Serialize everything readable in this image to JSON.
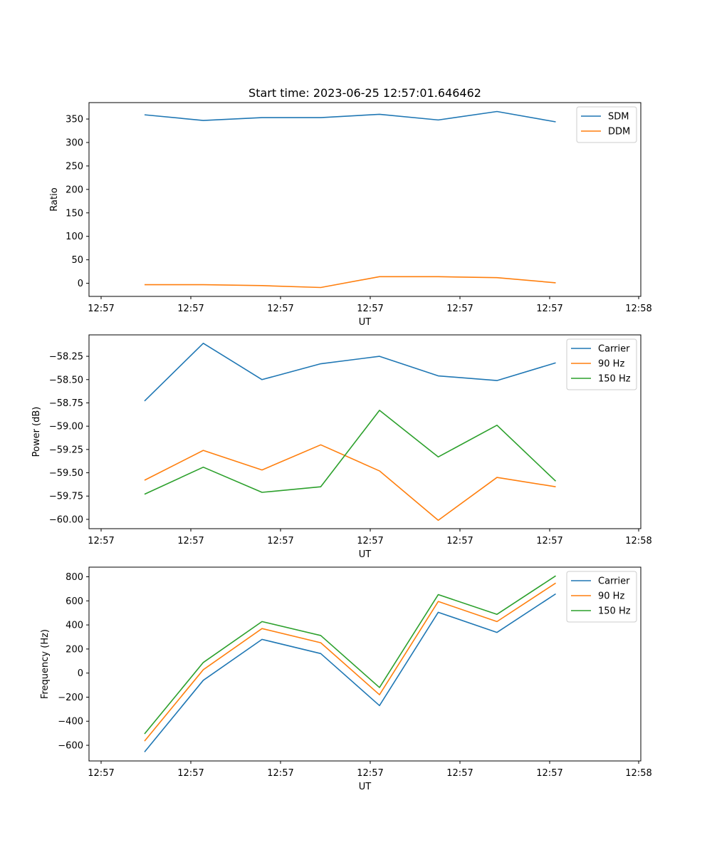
{
  "colors": {
    "blue": "#1f77b4",
    "orange": "#ff7f0e",
    "green": "#2ca02c"
  },
  "chart_data": [
    {
      "type": "line",
      "title": "Start time: 2023-06-25 12:57:01.646462",
      "xlabel": "UT",
      "ylabel": "Ratio",
      "x_tick_labels": [
        "12:57",
        "12:57",
        "12:57",
        "12:57",
        "12:57",
        "12:57",
        "12:58"
      ],
      "y_ticks": [
        0,
        50,
        100,
        150,
        200,
        250,
        300,
        350
      ],
      "y_tick_labels": [
        "0",
        "50",
        "100",
        "150",
        "200",
        "250",
        "300",
        "350"
      ],
      "ylim": [
        -28,
        385
      ],
      "legend_position": "top-right",
      "series": [
        {
          "name": "SDM",
          "color": "#1f77b4",
          "values": [
            359,
            347,
            353,
            353,
            360,
            348,
            366,
            344
          ]
        },
        {
          "name": "DDM",
          "color": "#ff7f0e",
          "values": [
            -3,
            -3,
            -5,
            -9,
            14,
            14,
            12,
            1
          ]
        }
      ]
    },
    {
      "type": "line",
      "title": "",
      "xlabel": "UT",
      "ylabel": "Power (dB)",
      "x_tick_labels": [
        "12:57",
        "12:57",
        "12:57",
        "12:57",
        "12:57",
        "12:57",
        "12:58"
      ],
      "y_ticks": [
        -60.0,
        -59.75,
        -59.5,
        -59.25,
        -59.0,
        -58.75,
        -58.5,
        -58.25
      ],
      "y_tick_labels": [
        "−60.00",
        "−59.75",
        "−59.50",
        "−59.25",
        "−59.00",
        "−58.75",
        "−58.50",
        "−58.25"
      ],
      "ylim": [
        -60.1,
        -58.02
      ],
      "legend_position": "top-right",
      "series": [
        {
          "name": "Carrier",
          "color": "#1f77b4",
          "values": [
            -58.73,
            -58.11,
            -58.5,
            -58.33,
            -58.25,
            -58.46,
            -58.51,
            -58.32
          ]
        },
        {
          "name": "90 Hz",
          "color": "#ff7f0e",
          "values": [
            -59.58,
            -59.26,
            -59.47,
            -59.2,
            -59.48,
            -60.01,
            -59.55,
            -59.65
          ]
        },
        {
          "name": "150 Hz",
          "color": "#2ca02c",
          "values": [
            -59.73,
            -59.44,
            -59.71,
            -59.65,
            -58.83,
            -59.33,
            -58.99,
            -59.59
          ]
        }
      ]
    },
    {
      "type": "line",
      "title": "",
      "xlabel": "UT",
      "ylabel": "Frequency (Hz)",
      "x_tick_labels": [
        "12:57",
        "12:57",
        "12:57",
        "12:57",
        "12:57",
        "12:57",
        "12:58"
      ],
      "y_ticks": [
        -600,
        -400,
        -200,
        0,
        200,
        400,
        600,
        800
      ],
      "y_tick_labels": [
        "−600",
        "−400",
        "−200",
        "0",
        "200",
        "400",
        "600",
        "800"
      ],
      "ylim": [
        -730,
        880
      ],
      "legend_position": "top-right",
      "series": [
        {
          "name": "Carrier",
          "color": "#1f77b4",
          "values": [
            -655,
            -60,
            280,
            162,
            -270,
            505,
            338,
            658
          ]
        },
        {
          "name": "90 Hz",
          "color": "#ff7f0e",
          "values": [
            -565,
            28,
            370,
            252,
            -180,
            595,
            428,
            748
          ]
        },
        {
          "name": "150 Hz",
          "color": "#2ca02c",
          "values": [
            -505,
            88,
            428,
            312,
            -120,
            652,
            488,
            808
          ]
        }
      ]
    }
  ]
}
